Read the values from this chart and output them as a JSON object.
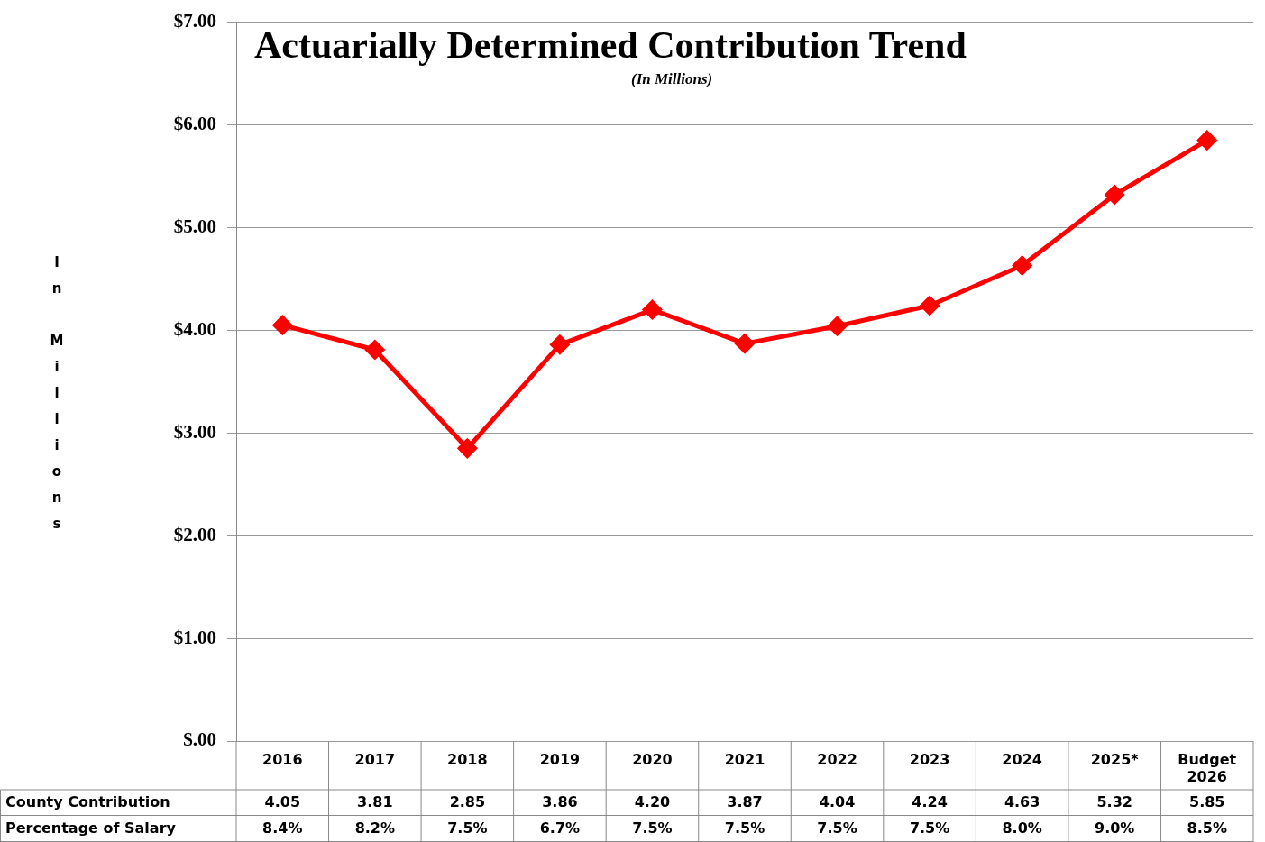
{
  "chart_data": {
    "type": "line",
    "title": "Actuarially Determined Contribution Trend",
    "subtitle": "(In Millions)",
    "categories": [
      "2016",
      "2017",
      "2018",
      "2019",
      "2020",
      "2021",
      "2022",
      "2023",
      "2024",
      "2025*",
      "Budget 2026"
    ],
    "series": [
      {
        "name": "County Contribution",
        "color": "#ff0000",
        "values": [
          4.05,
          3.81,
          2.85,
          3.86,
          4.2,
          3.87,
          4.04,
          4.24,
          4.63,
          5.32,
          5.85
        ],
        "value_labels": [
          "4.05",
          "3.81",
          "2.85",
          "3.86",
          "4.20",
          "3.87",
          "4.04",
          "4.24",
          "4.63",
          "5.32",
          "5.85"
        ]
      }
    ],
    "annotations": [
      "In Millions",
      "Percentage of Salary",
      "8.4%",
      "8.2%",
      "7.5%",
      "6.7%",
      "7.5%",
      "7.5%",
      "7.5%",
      "7.5%",
      "8.0%",
      "9.0%",
      "8.5%"
    ],
    "ylim": [
      0,
      7
    ],
    "yticks": [
      {
        "value": 0,
        "label": "$.00"
      },
      {
        "value": 1,
        "label": "$1.00"
      },
      {
        "value": 2,
        "label": "$2.00"
      },
      {
        "value": 3,
        "label": "$3.00"
      },
      {
        "value": 4,
        "label": "$4.00"
      },
      {
        "value": 5,
        "label": "$5.00"
      },
      {
        "value": 6,
        "label": "$6.00"
      },
      {
        "value": 7,
        "label": "$7.00"
      }
    ],
    "grid": "y",
    "legend": false,
    "marker": "diamond",
    "line_style": "solid",
    "data_labels": true
  }
}
